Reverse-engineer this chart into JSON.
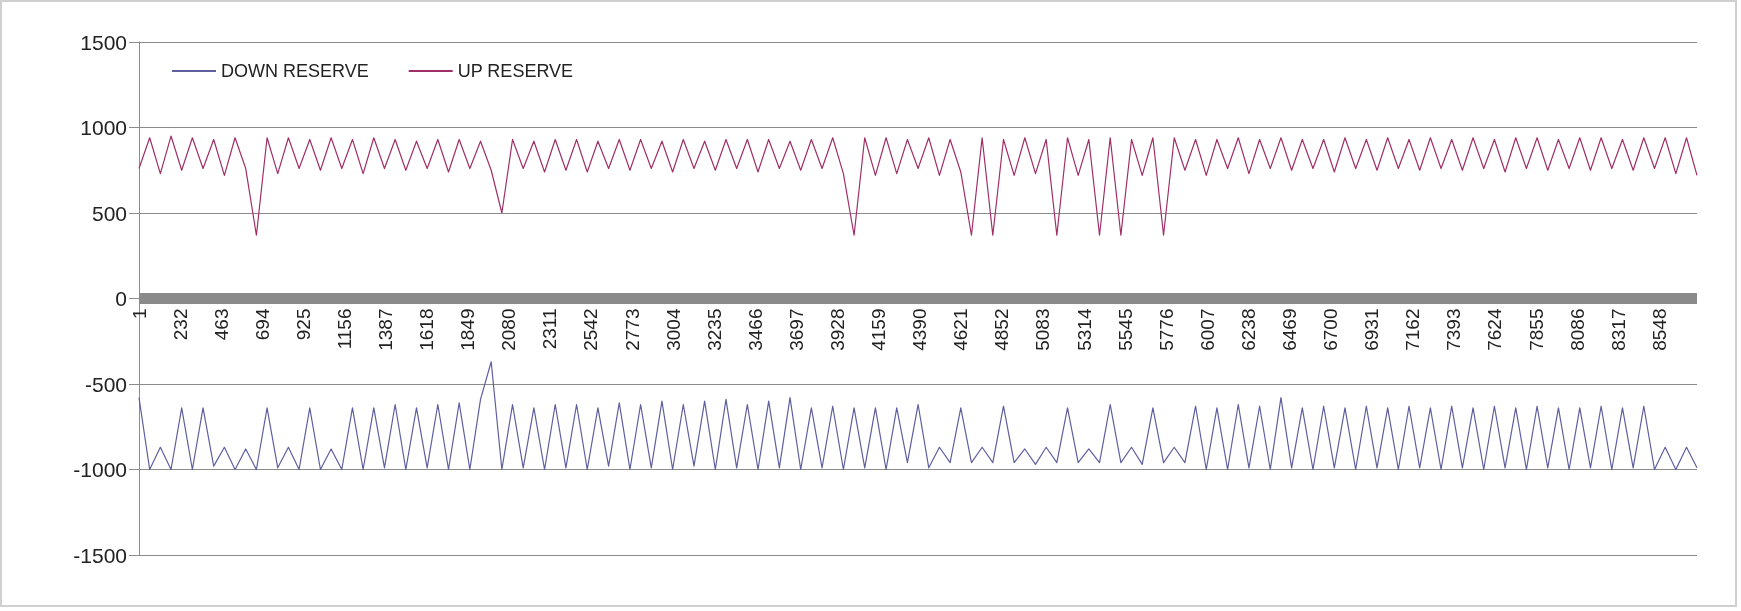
{
  "chart_data": {
    "type": "line",
    "x": [
      1,
      61,
      121,
      181,
      241,
      301,
      361,
      421,
      481,
      541,
      601,
      661,
      721,
      781,
      841,
      901,
      961,
      1021,
      1081,
      1141,
      1201,
      1261,
      1321,
      1381,
      1441,
      1501,
      1561,
      1621,
      1681,
      1741,
      1801,
      1861,
      1921,
      1981,
      2041,
      2101,
      2161,
      2221,
      2281,
      2341,
      2401,
      2461,
      2521,
      2581,
      2641,
      2701,
      2761,
      2821,
      2881,
      2941,
      3001,
      3061,
      3121,
      3181,
      3241,
      3301,
      3361,
      3421,
      3481,
      3541,
      3601,
      3661,
      3721,
      3781,
      3841,
      3901,
      3961,
      4021,
      4081,
      4141,
      4201,
      4261,
      4321,
      4381,
      4441,
      4501,
      4561,
      4621,
      4681,
      4741,
      4801,
      4861,
      4921,
      4981,
      5041,
      5101,
      5161,
      5221,
      5281,
      5341,
      5401,
      5461,
      5521,
      5581,
      5641,
      5701,
      5761,
      5821,
      5881,
      5941,
      6001,
      6061,
      6121,
      6181,
      6241,
      6301,
      6361,
      6421,
      6481,
      6541,
      6601,
      6661,
      6721,
      6781,
      6841,
      6901,
      6961,
      7021,
      7081,
      7141,
      7201,
      7261,
      7321,
      7381,
      7441,
      7501,
      7561,
      7621,
      7681,
      7741,
      7801,
      7861,
      7921,
      7981,
      8041,
      8101,
      8161,
      8221,
      8281,
      8341,
      8401,
      8461,
      8521,
      8581,
      8641,
      8701,
      8760
    ],
    "series": [
      {
        "name": "DOWN RESERVE",
        "color": "#5f5fa0",
        "values": [
          -580,
          -1000,
          -870,
          -1000,
          -640,
          -1000,
          -640,
          -980,
          -870,
          -1000,
          -880,
          -1000,
          -640,
          -990,
          -870,
          -1000,
          -640,
          -1000,
          -880,
          -1000,
          -640,
          -1000,
          -640,
          -990,
          -620,
          -1000,
          -640,
          -990,
          -620,
          -1000,
          -610,
          -1000,
          -590,
          -370,
          -1000,
          -620,
          -990,
          -640,
          -1000,
          -620,
          -990,
          -620,
          -1000,
          -640,
          -980,
          -610,
          -1000,
          -620,
          -990,
          -600,
          -1000,
          -620,
          -980,
          -600,
          -1000,
          -590,
          -990,
          -620,
          -1000,
          -600,
          -990,
          -580,
          -1000,
          -640,
          -990,
          -630,
          -1000,
          -640,
          -990,
          -640,
          -1000,
          -640,
          -960,
          -620,
          -990,
          -870,
          -960,
          -640,
          -960,
          -870,
          -960,
          -630,
          -960,
          -880,
          -970,
          -870,
          -960,
          -640,
          -960,
          -880,
          -960,
          -620,
          -960,
          -870,
          -970,
          -640,
          -960,
          -870,
          -960,
          -630,
          -1000,
          -640,
          -1000,
          -620,
          -990,
          -630,
          -1000,
          -580,
          -990,
          -640,
          -1000,
          -630,
          -990,
          -640,
          -1000,
          -630,
          -990,
          -640,
          -1000,
          -630,
          -990,
          -640,
          -1000,
          -630,
          -990,
          -640,
          -1000,
          -630,
          -990,
          -640,
          -1000,
          -630,
          -990,
          -640,
          -1000,
          -640,
          -990,
          -630,
          -1000,
          -640,
          -990,
          -630,
          -1000,
          -870,
          -1000,
          -870,
          -990
        ]
      },
      {
        "name": "UP RESERVE",
        "color": "#a02f68",
        "values": [
          760,
          940,
          730,
          950,
          750,
          940,
          760,
          930,
          720,
          940,
          760,
          370,
          940,
          730,
          940,
          760,
          930,
          750,
          940,
          760,
          930,
          730,
          940,
          760,
          930,
          750,
          920,
          760,
          930,
          740,
          930,
          760,
          920,
          750,
          500,
          930,
          760,
          920,
          740,
          930,
          750,
          930,
          740,
          920,
          760,
          930,
          750,
          930,
          760,
          920,
          740,
          930,
          760,
          920,
          750,
          930,
          760,
          930,
          740,
          930,
          760,
          920,
          750,
          930,
          760,
          940,
          730,
          370,
          940,
          720,
          940,
          730,
          930,
          760,
          940,
          720,
          930,
          740,
          370,
          940,
          370,
          930,
          720,
          940,
          730,
          930,
          370,
          940,
          720,
          930,
          370,
          940,
          370,
          930,
          720,
          940,
          370,
          940,
          750,
          930,
          720,
          930,
          760,
          940,
          730,
          930,
          760,
          940,
          750,
          930,
          760,
          930,
          740,
          940,
          760,
          930,
          750,
          940,
          760,
          930,
          750,
          940,
          760,
          930,
          750,
          940,
          760,
          930,
          740,
          940,
          760,
          940,
          750,
          930,
          760,
          940,
          750,
          940,
          760,
          930,
          750,
          940,
          760,
          940,
          730,
          940,
          720
        ]
      }
    ],
    "xlim": [
      1,
      8760
    ],
    "xticks": [
      1,
      232,
      463,
      694,
      925,
      1156,
      1387,
      1618,
      1849,
      2080,
      2311,
      2542,
      2773,
      3004,
      3235,
      3466,
      3697,
      3928,
      4159,
      4390,
      4621,
      4852,
      5083,
      5314,
      5545,
      5776,
      6007,
      6238,
      6469,
      6700,
      6931,
      7162,
      7393,
      7624,
      7855,
      8086,
      8317,
      8548
    ],
    "ylim": [
      -1500,
      1500
    ],
    "yticks": [
      -1500,
      -1000,
      -500,
      0,
      500,
      1000,
      1500
    ],
    "grid": "y",
    "legend": "top left"
  }
}
